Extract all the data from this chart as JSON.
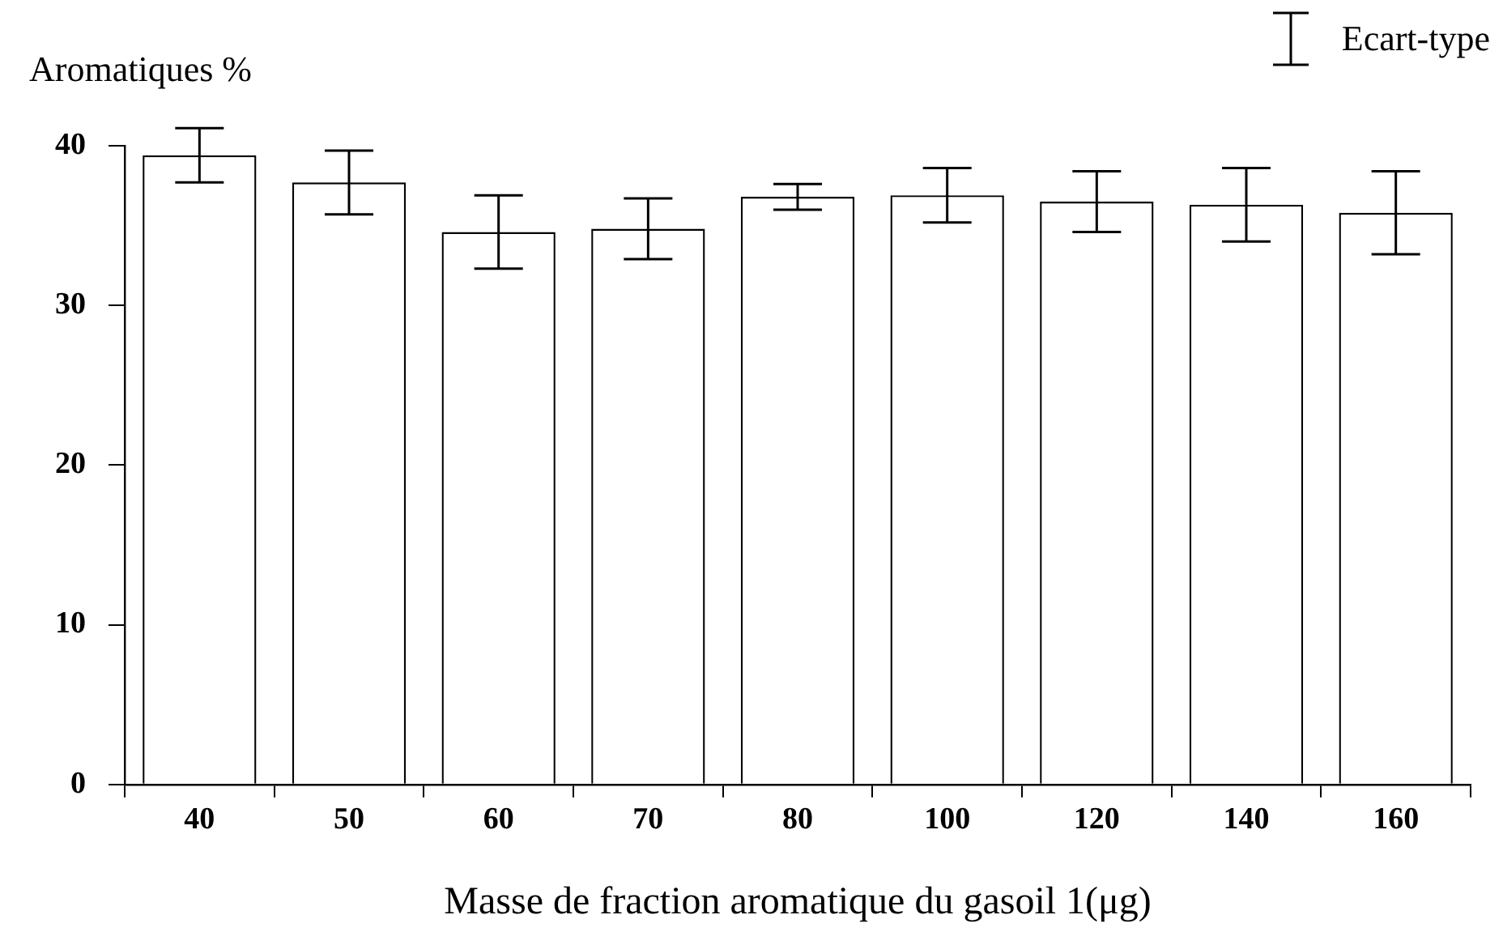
{
  "chart_data": {
    "type": "bar",
    "ylabel": "Aromatiques %",
    "xlabel": "Masse de fraction aromatique du gasoil 1(μg)",
    "categories": [
      "40",
      "50",
      "60",
      "70",
      "80",
      "100",
      "120",
      "140",
      "160"
    ],
    "values": [
      39.4,
      37.7,
      34.6,
      34.8,
      36.8,
      36.9,
      36.5,
      36.3,
      35.8
    ],
    "errors": [
      1.7,
      2.0,
      2.3,
      1.9,
      0.8,
      1.7,
      1.9,
      2.3,
      2.6
    ],
    "color": "#ffffff",
    "ylim": [
      0,
      40
    ],
    "yticks": [
      0,
      10,
      20,
      30,
      40
    ],
    "grid": false,
    "legend": false,
    "annotations": [
      "Ecart-type"
    ]
  }
}
